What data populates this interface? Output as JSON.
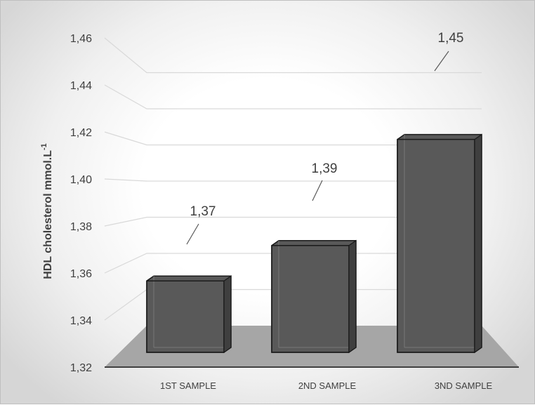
{
  "chart_data": {
    "type": "bar",
    "title": "",
    "ylabel": "HDL cholesterol mmol.L",
    "ylabel_superscript": "-1",
    "categories": [
      "1ST SAMPLE",
      "2ND SAMPLE",
      "3ND SAMPLE"
    ],
    "values": [
      1.37,
      1.39,
      1.45
    ],
    "data_labels": [
      "1,37",
      "1,39",
      "1,45"
    ],
    "ylim": [
      1.32,
      1.46
    ],
    "yticks": [
      1.32,
      1.34,
      1.36,
      1.38,
      1.4,
      1.42,
      1.44,
      1.46
    ],
    "ytick_labels": [
      "1,32",
      "1,34",
      "1,36",
      "1,38",
      "1,40",
      "1,42",
      "1,44",
      "1,46"
    ],
    "grid": true,
    "style": "3d-column",
    "colors": {
      "bar": "#595959",
      "bar_dark": "#3f3f3f",
      "floor": "#a6a6a6",
      "gridline": "#d9d9d9",
      "text": "#404040"
    }
  }
}
